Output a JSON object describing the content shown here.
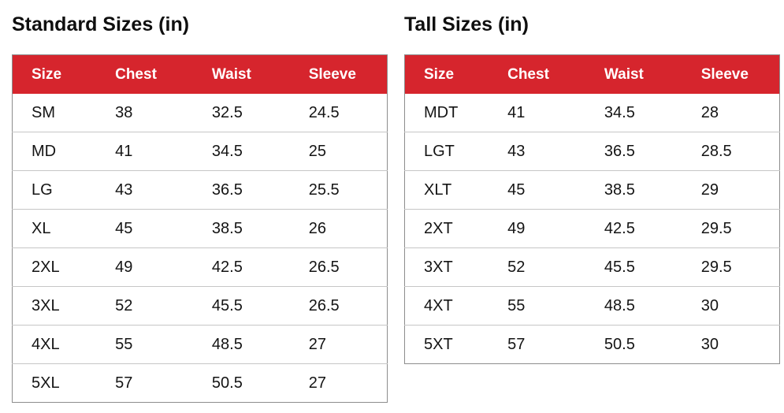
{
  "colors": {
    "header_bg": "#d6252d",
    "header_text": "#ffffff",
    "body_text": "#141414",
    "row_divider": "#c6c6c6",
    "table_border": "#8d8d8d",
    "background": "#ffffff"
  },
  "chart_data": [
    {
      "type": "table",
      "title": "Standard Sizes (in)",
      "columns": [
        "Size",
        "Chest",
        "Waist",
        "Sleeve"
      ],
      "rows": [
        [
          "SM",
          "38",
          "32.5",
          "24.5"
        ],
        [
          "MD",
          "41",
          "34.5",
          "25"
        ],
        [
          "LG",
          "43",
          "36.5",
          "25.5"
        ],
        [
          "XL",
          "45",
          "38.5",
          "26"
        ],
        [
          "2XL",
          "49",
          "42.5",
          "26.5"
        ],
        [
          "3XL",
          "52",
          "45.5",
          "26.5"
        ],
        [
          "4XL",
          "55",
          "48.5",
          "27"
        ],
        [
          "5XL",
          "57",
          "50.5",
          "27"
        ]
      ]
    },
    {
      "type": "table",
      "title": "Tall Sizes (in)",
      "columns": [
        "Size",
        "Chest",
        "Waist",
        "Sleeve"
      ],
      "rows": [
        [
          "MDT",
          "41",
          "34.5",
          "28"
        ],
        [
          "LGT",
          "43",
          "36.5",
          "28.5"
        ],
        [
          "XLT",
          "45",
          "38.5",
          "29"
        ],
        [
          "2XT",
          "49",
          "42.5",
          "29.5"
        ],
        [
          "3XT",
          "52",
          "45.5",
          "29.5"
        ],
        [
          "4XT",
          "55",
          "48.5",
          "30"
        ],
        [
          "5XT",
          "57",
          "50.5",
          "30"
        ]
      ]
    }
  ]
}
